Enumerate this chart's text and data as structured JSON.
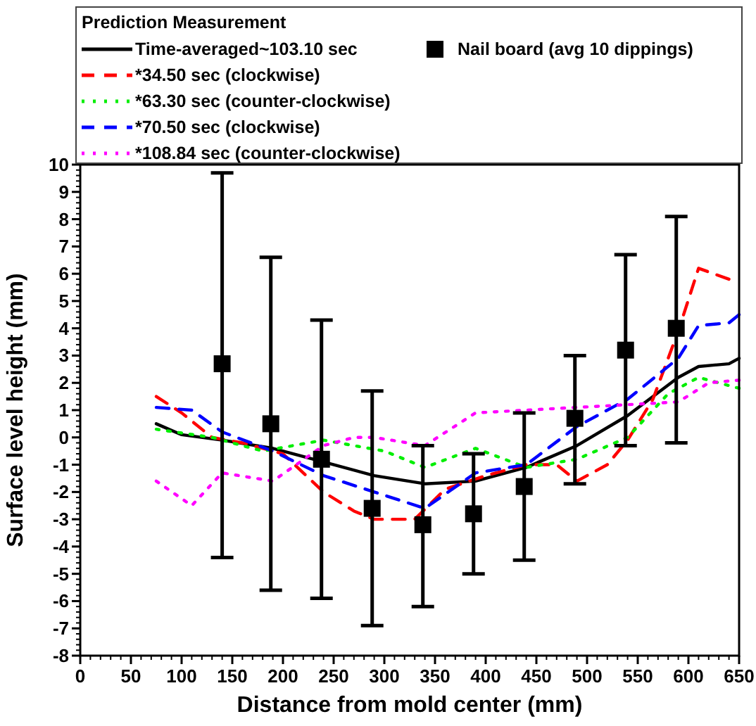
{
  "chart_data": {
    "type": "line",
    "legend_title": "Prediction Measurement",
    "xlabel": "Distance from mold center (mm)",
    "ylabel": "Surface level height (mm)",
    "xlim": [
      0,
      650
    ],
    "xticks": [
      0,
      50,
      100,
      150,
      200,
      250,
      300,
      350,
      400,
      450,
      500,
      550,
      600,
      650
    ],
    "ylim": [
      -8,
      10
    ],
    "yticks": [
      -8,
      -7,
      -6,
      -5,
      -4,
      -3,
      -2,
      -1,
      0,
      1,
      2,
      3,
      4,
      5,
      6,
      7,
      8,
      9,
      10
    ],
    "grid": false,
    "legend": "top",
    "series": [
      {
        "name": "Time-averaged~103.10 sec",
        "color": "#000000",
        "line_style": "solid",
        "x": [
          75,
          100,
          140,
          190,
          240,
          290,
          340,
          390,
          440,
          490,
          540,
          590,
          610,
          640,
          650
        ],
        "values": [
          0.5,
          0.1,
          -0.1,
          -0.4,
          -0.9,
          -1.4,
          -1.7,
          -1.6,
          -1.1,
          -0.3,
          0.8,
          2.2,
          2.6,
          2.7,
          2.9
        ]
      },
      {
        "name": "Nail board (avg 10 dippings)",
        "type": "scatter",
        "marker": "square",
        "color": "#000000",
        "x": [
          140,
          188,
          238,
          288,
          338,
          388,
          438,
          488,
          538,
          588
        ],
        "values": [
          2.7,
          0.5,
          -0.8,
          -2.6,
          -3.2,
          -2.8,
          -1.8,
          0.7,
          3.2,
          4.0
        ],
        "errors": [
          [
            -4.4,
            9.7
          ],
          [
            -5.6,
            6.6
          ],
          [
            -5.9,
            4.3
          ],
          [
            -6.9,
            1.7
          ],
          [
            -6.2,
            -0.3
          ],
          [
            -5.0,
            -0.6
          ],
          [
            -4.5,
            0.9
          ],
          [
            -1.7,
            3.0
          ],
          [
            -0.3,
            6.7
          ],
          [
            -0.2,
            8.1
          ]
        ]
      },
      {
        "name": "*34.50 sec (clockwise)",
        "color": "#ff0000",
        "line_style": "dashed",
        "x": [
          75,
          100,
          130,
          160,
          200,
          240,
          270,
          290,
          330,
          360,
          400,
          440,
          470,
          490,
          520,
          540,
          565,
          590,
          610,
          640
        ],
        "values": [
          1.5,
          0.9,
          0.0,
          -0.2,
          -0.6,
          -2.0,
          -2.7,
          -3.0,
          -3.0,
          -1.9,
          -1.4,
          -1.0,
          -1.0,
          -1.6,
          -1.0,
          -0.1,
          1.4,
          3.9,
          6.2,
          5.8
        ]
      },
      {
        "name": "*63.30 sec (counter-clockwise)",
        "color": "#00ee00",
        "line_style": "dotted",
        "x": [
          75,
          130,
          180,
          240,
          300,
          340,
          390,
          440,
          490,
          540,
          580,
          610,
          650
        ],
        "values": [
          0.3,
          0.0,
          -0.5,
          -0.1,
          -0.5,
          -1.1,
          -0.4,
          -1.1,
          -0.8,
          0.0,
          1.6,
          2.2,
          1.8
        ]
      },
      {
        "name": "*70.50 sec (clockwise)",
        "color": "#0000ff",
        "line_style": "dashed",
        "x": [
          75,
          110,
          140,
          190,
          240,
          290,
          340,
          390,
          440,
          490,
          540,
          590,
          610,
          640,
          650
        ],
        "values": [
          1.1,
          1.0,
          0.2,
          -0.5,
          -1.4,
          -2.0,
          -2.6,
          -1.3,
          -1.0,
          0.4,
          1.4,
          2.9,
          4.1,
          4.2,
          4.5
        ]
      },
      {
        "name": "*108.84 sec (counter-clockwise)",
        "color": "#ff00ff",
        "line_style": "dotted",
        "x": [
          75,
          110,
          140,
          190,
          240,
          270,
          290,
          340,
          390,
          440,
          490,
          540,
          590,
          620,
          650
        ],
        "values": [
          -1.6,
          -2.5,
          -1.3,
          -1.6,
          -0.3,
          0.0,
          0.0,
          -0.3,
          0.9,
          1.0,
          1.1,
          1.2,
          1.3,
          2.0,
          2.1
        ]
      }
    ]
  }
}
